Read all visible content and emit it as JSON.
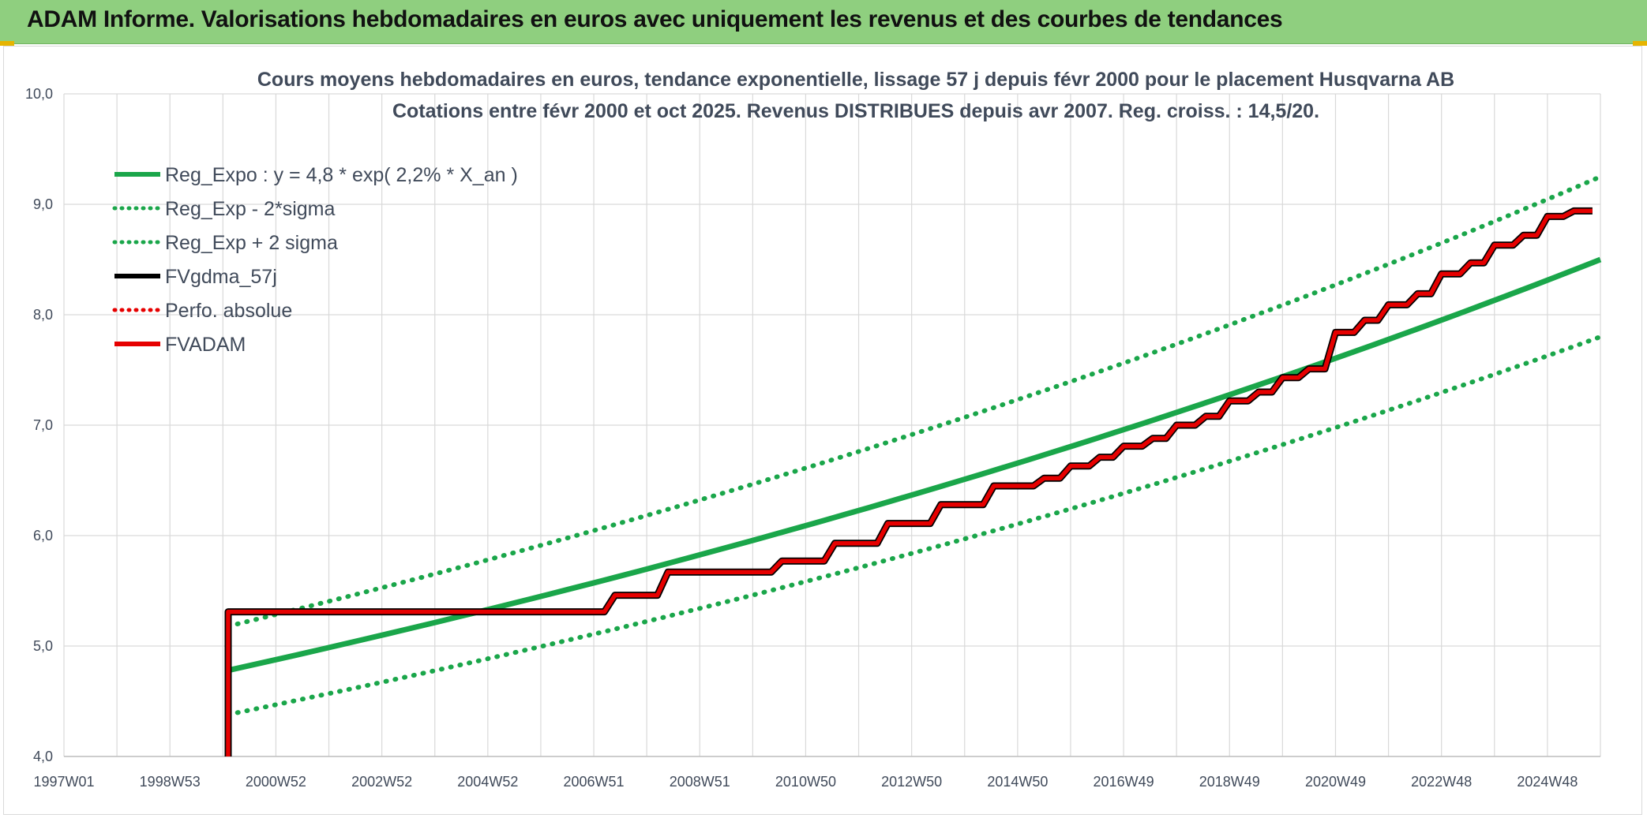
{
  "header": {
    "title": "ADAM Informe. Valorisations hebdomadaires en euros avec uniquement les revenus et des courbes de tendances"
  },
  "colors": {
    "header_bg": "#8fcf7f",
    "trend": "#1aa64a",
    "fvgdma": "#000000",
    "fvadam": "#e60000",
    "perfo": "#e60000",
    "grid": "#d9d9d9"
  },
  "chart_data": {
    "type": "line",
    "title_lines": [
      "Cours moyens hebdomadaires en euros, tendance exponentielle, lissage 57 j depuis févr 2000 pour le placement Husqvarna AB",
      "Cotations entre févr 2000 et oct 2025. Revenus DISTRIBUES depuis avr 2007. Reg. croiss. : 14,5/20."
    ],
    "xlabel": "",
    "ylabel": "",
    "x_tick_labels": [
      "1997W01",
      "1998W53",
      "2000W52",
      "2002W52",
      "2004W52",
      "2006W51",
      "2008W51",
      "2010W50",
      "2012W50",
      "2014W50",
      "2016W49",
      "2018W49",
      "2020W49",
      "2022W48",
      "2024W48"
    ],
    "xlim": [
      1997.0,
      2026.0
    ],
    "ylim": [
      4.0,
      10.0
    ],
    "y_ticks": [
      "4,0",
      "5,0",
      "6,0",
      "7,0",
      "8,0",
      "9,0",
      "10,0"
    ],
    "grid": true,
    "legend_position": "top-left",
    "legend": [
      {
        "label": "Reg_Expo : y = 4,8 * exp( 2,2% *  X_an )",
        "style": "solid",
        "color_key": "trend"
      },
      {
        "label": "Reg_Exp - 2*sigma",
        "style": "dotted",
        "color_key": "trend"
      },
      {
        "label": "Reg_Exp + 2 sigma",
        "style": "dotted",
        "color_key": "trend"
      },
      {
        "label": "FVgdma_57j",
        "style": "solid",
        "color_key": "fvgdma"
      },
      {
        "label": "Perfo. absolue",
        "style": "dotted",
        "color_key": "perfo"
      },
      {
        "label": "FVADAM",
        "style": "solid",
        "color_key": "fvadam"
      }
    ],
    "series": [
      {
        "name": "Reg_Expo : y = 4,8 * exp( 2,2% *  X_an )",
        "x": [
          2000.1,
          2026.0
        ],
        "y": [
          4.78,
          8.5
        ]
      },
      {
        "name": "Reg_Exp - 2*sigma",
        "x": [
          2000.1,
          2026.0
        ],
        "y": [
          4.38,
          7.8
        ]
      },
      {
        "name": "Reg_Exp + 2 sigma",
        "x": [
          2000.1,
          2026.0
        ],
        "y": [
          5.18,
          9.25
        ]
      },
      {
        "name": "FVADAM",
        "x": [
          2000.1,
          2000.1,
          2007.2,
          2007.4,
          2008.2,
          2008.4,
          2010.35,
          2010.55,
          2011.35,
          2011.55,
          2012.35,
          2012.55,
          2013.35,
          2013.55,
          2014.35,
          2014.55,
          2015.3,
          2015.5,
          2015.8,
          2016.0,
          2016.35,
          2016.55,
          2016.8,
          2017.0,
          2017.35,
          2017.55,
          2017.8,
          2018.0,
          2018.35,
          2018.55,
          2018.8,
          2019.0,
          2019.35,
          2019.55,
          2019.8,
          2020.0,
          2020.3,
          2020.5,
          2020.8,
          2021.0,
          2021.35,
          2021.55,
          2021.8,
          2022.0,
          2022.35,
          2022.55,
          2022.8,
          2023.0,
          2023.35,
          2023.55,
          2023.8,
          2024.0,
          2024.35,
          2024.55,
          2024.8,
          2025.0,
          2025.3,
          2025.5,
          2025.85
        ],
        "y": [
          4.0,
          5.31,
          5.31,
          5.46,
          5.46,
          5.67,
          5.67,
          5.77,
          5.77,
          5.93,
          5.93,
          6.11,
          6.11,
          6.28,
          6.28,
          6.45,
          6.45,
          6.52,
          6.52,
          6.63,
          6.63,
          6.71,
          6.71,
          6.81,
          6.81,
          6.88,
          6.88,
          7.0,
          7.0,
          7.08,
          7.08,
          7.22,
          7.22,
          7.3,
          7.3,
          7.43,
          7.43,
          7.51,
          7.51,
          7.84,
          7.84,
          7.95,
          7.95,
          8.09,
          8.09,
          8.19,
          8.19,
          8.37,
          8.37,
          8.47,
          8.47,
          8.63,
          8.63,
          8.72,
          8.72,
          8.89,
          8.89,
          8.94,
          8.94
        ]
      }
    ]
  }
}
